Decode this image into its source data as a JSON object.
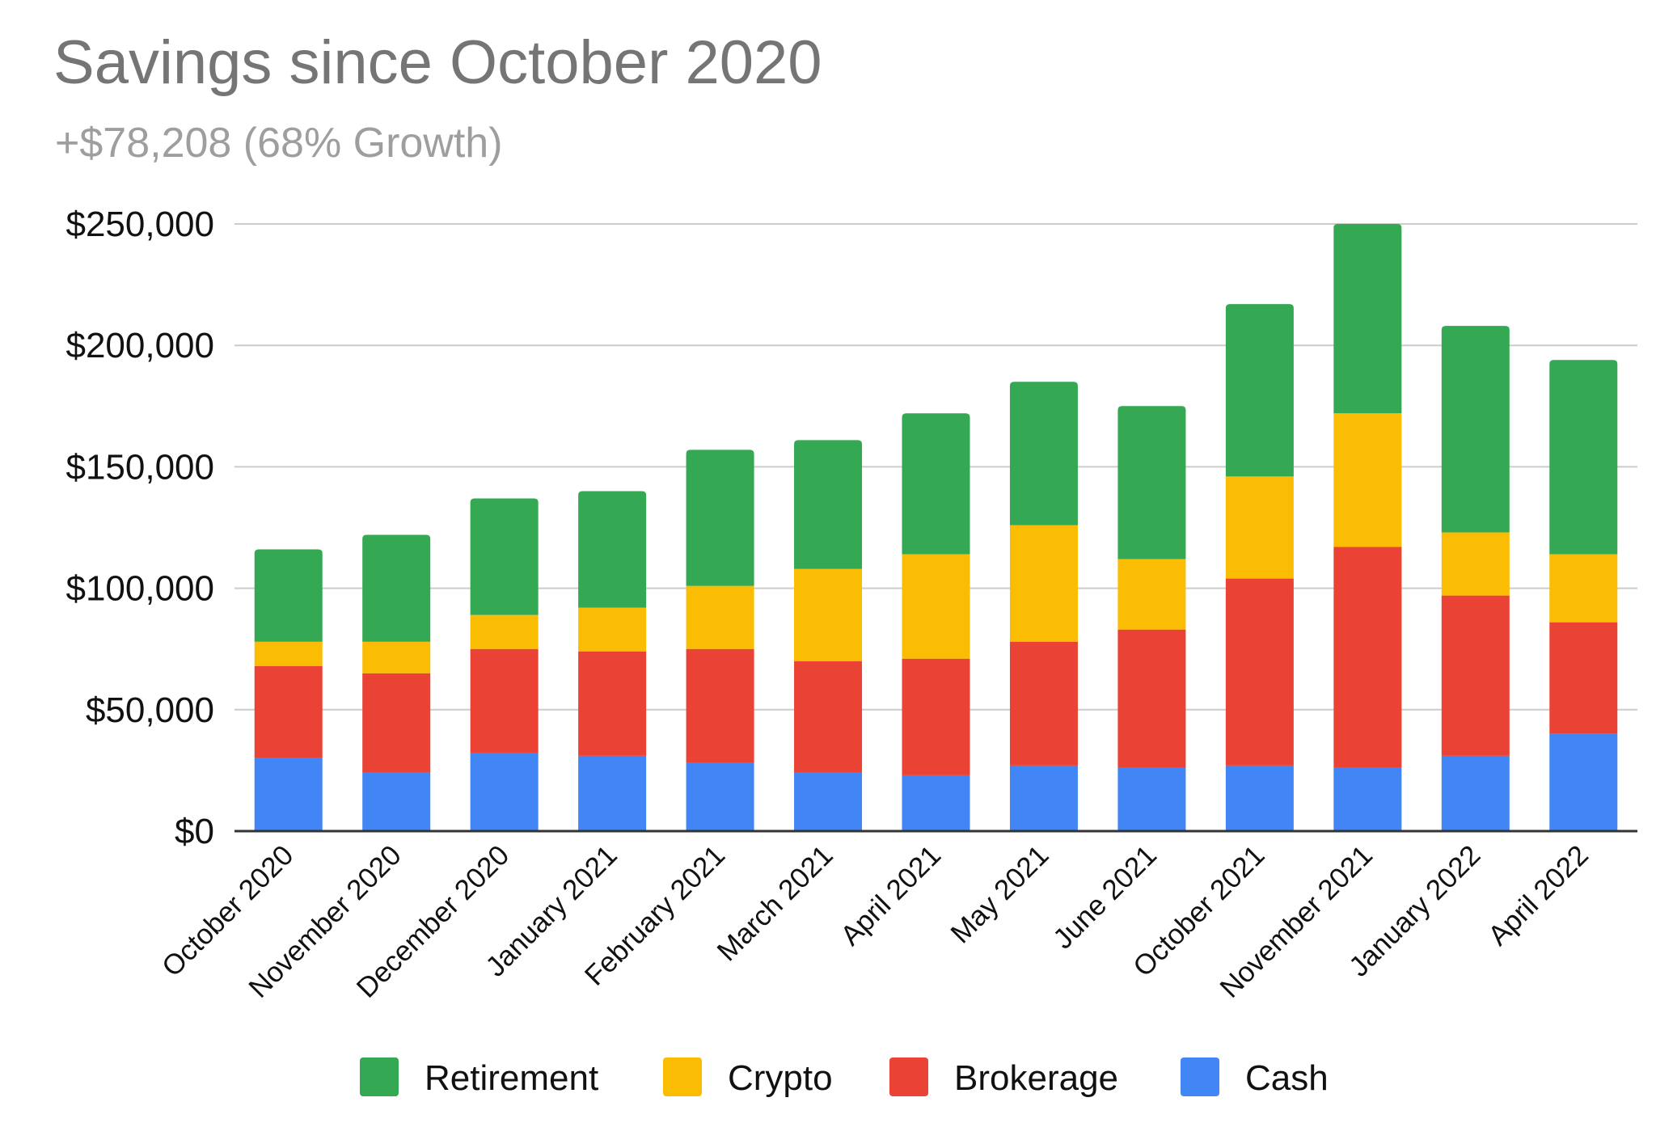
{
  "chart_data": {
    "type": "bar",
    "stacked": true,
    "title": "Savings since October 2020",
    "subtitle": "+$78,208 (68% Growth)",
    "xlabel": "",
    "ylabel": "",
    "ylim": [
      0,
      250000
    ],
    "y_ticks": [
      0,
      50000,
      100000,
      150000,
      200000,
      250000
    ],
    "y_tick_labels": [
      "$0",
      "$50,000",
      "$100,000",
      "$150,000",
      "$200,000",
      "$250,000"
    ],
    "grid": true,
    "legend_position": "bottom",
    "categories": [
      "October 2020",
      "November 2020",
      "December 2020",
      "January 2021",
      "February 2021",
      "March 2021",
      "April 2021",
      "May 2021",
      "June 2021",
      "October 2021",
      "November 2021",
      "January 2022",
      "April 2022"
    ],
    "series": [
      {
        "name": "Cash",
        "color": "#4285f4",
        "values": [
          30000,
          24000,
          32000,
          31000,
          28000,
          24000,
          23000,
          27000,
          26000,
          27000,
          26000,
          31000,
          40000
        ]
      },
      {
        "name": "Brokerage",
        "color": "#ea4335",
        "values": [
          38000,
          41000,
          43000,
          43000,
          47000,
          46000,
          48000,
          51000,
          57000,
          77000,
          91000,
          66000,
          46000
        ]
      },
      {
        "name": "Crypto",
        "color": "#fbbc04",
        "values": [
          10000,
          13000,
          14000,
          18000,
          26000,
          38000,
          43000,
          48000,
          29000,
          42000,
          55000,
          26000,
          28000
        ]
      },
      {
        "name": "Retirement",
        "color": "#34a853",
        "values": [
          38000,
          44000,
          48000,
          48000,
          56000,
          53000,
          58000,
          59000,
          63000,
          71000,
          78000,
          85000,
          80000
        ]
      }
    ],
    "legend_order": [
      "Retirement",
      "Crypto",
      "Brokerage",
      "Cash"
    ]
  }
}
